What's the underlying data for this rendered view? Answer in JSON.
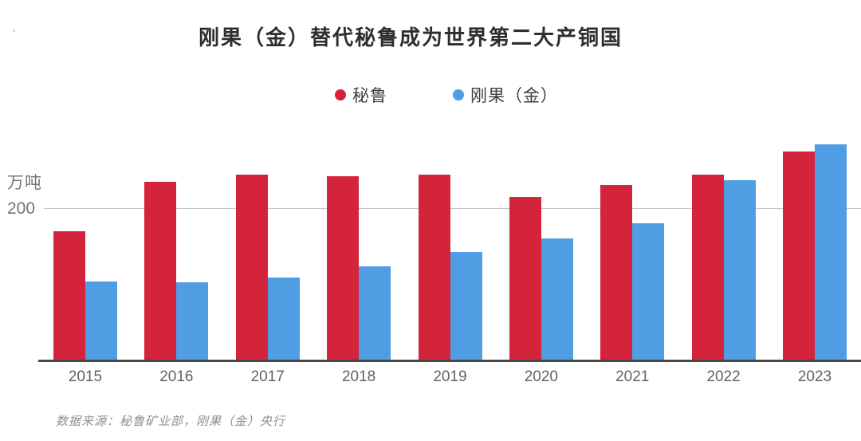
{
  "header": {
    "title": "刚果（金）替代秘鲁成为世界第二大产铜国"
  },
  "y_axis": {
    "unit_label": "万吨",
    "tick_200": "200"
  },
  "footer": {
    "source_note": "数据来源：秘鲁矿业部，刚果（金）央行"
  },
  "chart_data": {
    "type": "bar",
    "title": "刚果（金）替代秘鲁成为世界第二大产铜国",
    "unit_label": "万吨",
    "categories": [
      "2015",
      "2016",
      "2017",
      "2018",
      "2019",
      "2020",
      "2021",
      "2022",
      "2023"
    ],
    "series": [
      {
        "name": "秘鲁",
        "color": "#d4243c",
        "values": [
          170,
          235,
          244,
          242,
          244,
          215,
          231,
          244,
          275
        ]
      },
      {
        "name": "刚果（金）",
        "color": "#4f9ee3",
        "values": [
          103,
          102,
          109,
          123,
          142,
          160,
          180,
          237,
          284
        ]
      }
    ],
    "xlabel": "",
    "ylabel": "万吨",
    "ylim": [
      0,
      300
    ],
    "y_gridlines": [
      200
    ],
    "grid": "single horizontal gridline at 200",
    "legend_position": "top-center",
    "source_note": "数据来源：秘鲁矿业部，刚果（金）央行"
  }
}
